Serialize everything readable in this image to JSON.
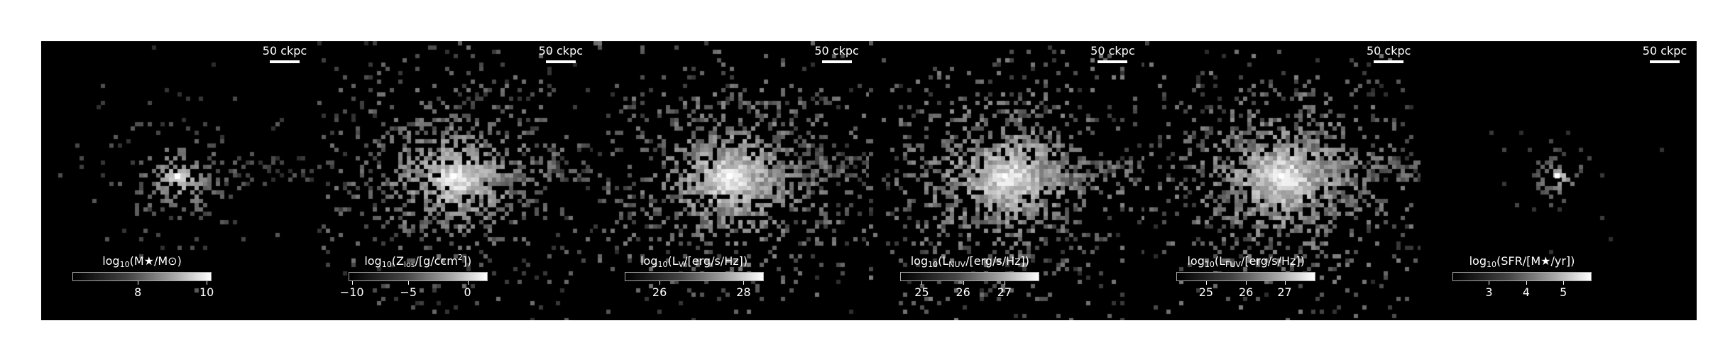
{
  "scalebar_label": "50 ckpc",
  "colors": {
    "background": "#000000",
    "page": "#ffffff",
    "text": "#ffffff"
  },
  "panels": [
    {
      "quantity": "stellar mass",
      "label_pre": "log",
      "label_sub": "10",
      "label_rest": "(M★/M⊙)",
      "ticks": [
        "8",
        "10"
      ],
      "tick_fracs": [
        0.47,
        0.97
      ],
      "spread": 0.55,
      "density": 0.55,
      "core": 1.0
    },
    {
      "quantity": "line-of-sight metal column",
      "label_pre": "log",
      "label_sub": "10",
      "label_rest": "(Z",
      "label_sub2": "los",
      "label_rest2": "/[g/ccm",
      "label_sup": "2",
      "label_tail": "])",
      "ticks": [
        "−10",
        "−5",
        "0"
      ],
      "tick_fracs": [
        0.02,
        0.43,
        0.86
      ],
      "spread": 1.0,
      "density": 0.8,
      "core": 1.0
    },
    {
      "quantity": "V-band luminosity",
      "label_pre": "log",
      "label_sub": "10",
      "label_rest": "(L",
      "label_sub2": "V",
      "label_rest2": "/[erg/s/Hz])",
      "ticks": [
        "26",
        "28"
      ],
      "tick_fracs": [
        0.25,
        0.86
      ],
      "spread": 1.0,
      "density": 0.9,
      "core": 1.0
    },
    {
      "quantity": "NUV luminosity",
      "label_pre": "log",
      "label_sub": "10",
      "label_rest": "(L",
      "label_sub2": "NUV",
      "label_rest2": "/[erg/s/Hz])",
      "ticks": [
        "25",
        "26",
        "27"
      ],
      "tick_fracs": [
        0.15,
        0.45,
        0.75
      ],
      "spread": 1.0,
      "density": 0.95,
      "core": 0.95
    },
    {
      "quantity": "FUV luminosity",
      "label_pre": "log",
      "label_sub": "10",
      "label_rest": "(L",
      "label_sub2": "FUV",
      "label_rest2": "/[erg/s/Hz])",
      "ticks": [
        "25",
        "26",
        "27"
      ],
      "tick_fracs": [
        0.21,
        0.5,
        0.78
      ],
      "spread": 1.0,
      "density": 0.95,
      "core": 0.95
    },
    {
      "quantity": "star formation rate",
      "label_pre": "log",
      "label_sub": "10",
      "label_rest": "(SFR/[M★/yr])",
      "ticks": [
        "3",
        "4",
        "5"
      ],
      "tick_fracs": [
        0.26,
        0.53,
        0.8
      ],
      "spread": 0.35,
      "density": 0.35,
      "core": 0.9
    }
  ]
}
